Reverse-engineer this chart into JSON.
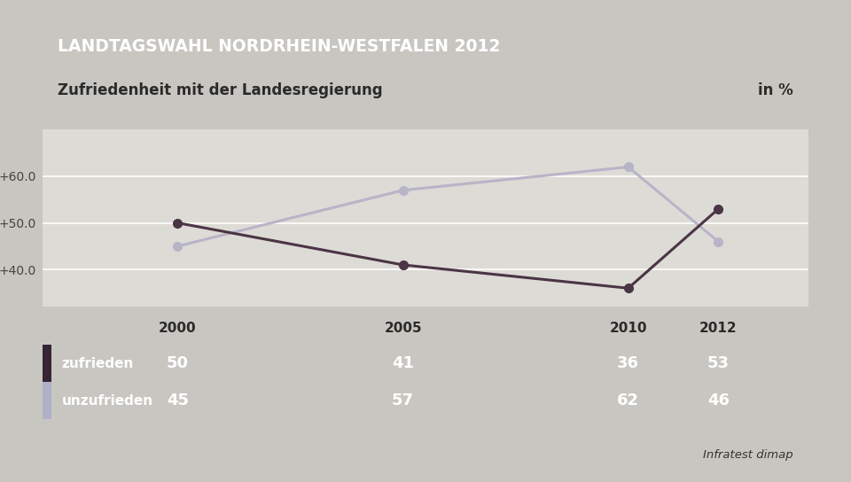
{
  "title": "LANDTAGSWAHL NORDRHEIN-WESTFALEN 2012",
  "subtitle": "Zufriedenheit mit der Landesregierung",
  "subtitle_right": "in %",
  "source": "Infratest dimap",
  "years": [
    2000,
    2005,
    2010,
    2012
  ],
  "zufrieden": [
    50,
    41,
    36,
    53
  ],
  "unzufrieden": [
    45,
    57,
    62,
    46
  ],
  "zufrieden_label": "zufrieden",
  "unzufrieden_label": "unzufrieden",
  "line_color_zufrieden": "#4a3545",
  "line_color_unzufrieden": "#b8b4c8",
  "marker_color_zufrieden": "#4a3545",
  "marker_color_unzufrieden": "#b8b4c8",
  "yticks": [
    40.0,
    50.0,
    60.0
  ],
  "ylim": [
    32,
    70
  ],
  "xlim_min": 1997,
  "xlim_max": 2014,
  "title_bg_color": "#1a3a6e",
  "title_text_color": "#ffffff",
  "subtitle_bg_color": "#f2f0f0",
  "subtitle_text_color": "#2a2a2a",
  "table_row1_bg": "#4a7aaa",
  "table_row2_bg": "#5a8abb",
  "table_text_color": "#ffffff",
  "outer_bg_color": "#c8c6c0",
  "plot_bg_color": "#dddbd5",
  "grid_color": "#ffffff",
  "side_stripe_zufrieden": "#352535",
  "side_stripe_unzufrieden": "#b0b0c8",
  "line_width": 2.2,
  "marker_size": 7
}
